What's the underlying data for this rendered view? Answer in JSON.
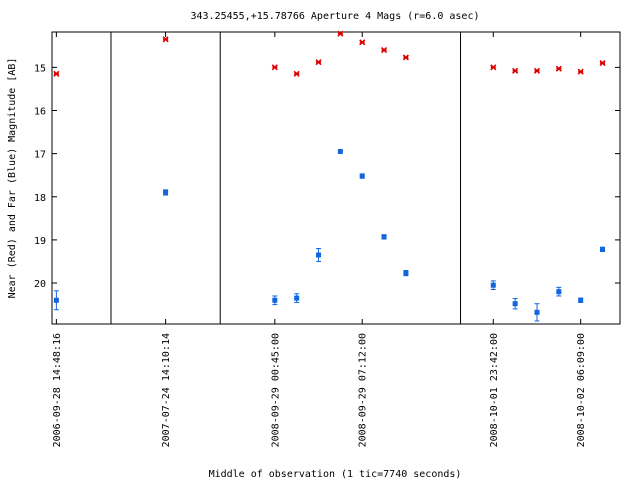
{
  "chart_data": {
    "type": "scatter",
    "title": "343.25455,+15.78766   Aperture 4 Mags (r=6.0 asec)",
    "xlabel": "Middle of observation (1 tic=7740 seconds)",
    "ylabel": "Near (Red) and Far (Blue) Magnitude [AB]",
    "y_reversed": true,
    "ylim": [
      20.95,
      14.18
    ],
    "xlim": [
      -0.2,
      25.8
    ],
    "y_ticks": [
      15,
      16,
      17,
      18,
      19,
      20
    ],
    "x_ticks": [
      {
        "x": 0,
        "label": "2006-09-28 14:48:16"
      },
      {
        "x": 5,
        "label": "2007-07-24 14:10:14"
      },
      {
        "x": 10,
        "label": "2008-09-29 00:45:00"
      },
      {
        "x": 14,
        "label": "2008-09-29 07:12:00"
      },
      {
        "x": 20,
        "label": "2008-10-01 23:42:00"
      },
      {
        "x": 24,
        "label": "2008-10-02 06:09:00"
      }
    ],
    "separators": [
      2.5,
      7.5,
      18.5
    ],
    "grid": false,
    "series": [
      {
        "color": "#dd0000",
        "marker": "x",
        "points": [
          {
            "x": 0,
            "y": 15.15,
            "err": 0.03
          },
          {
            "x": 5,
            "y": 14.35,
            "err": 0.03
          },
          {
            "x": 10,
            "y": 15.0,
            "err": 0.04
          },
          {
            "x": 11,
            "y": 15.15,
            "err": 0.04
          },
          {
            "x": 12,
            "y": 14.88,
            "err": 0.04
          },
          {
            "x": 13,
            "y": 14.22,
            "err": 0.03
          },
          {
            "x": 14,
            "y": 14.42,
            "err": 0.03
          },
          {
            "x": 15,
            "y": 14.6,
            "err": 0.03
          },
          {
            "x": 16,
            "y": 14.77,
            "err": 0.04
          },
          {
            "x": 20,
            "y": 15.0,
            "err": 0.04
          },
          {
            "x": 21,
            "y": 15.08,
            "err": 0.04
          },
          {
            "x": 22,
            "y": 15.08,
            "err": 0.04
          },
          {
            "x": 23,
            "y": 15.03,
            "err": 0.04
          },
          {
            "x": 24,
            "y": 15.1,
            "err": 0.04
          },
          {
            "x": 25,
            "y": 14.9,
            "err": 0.04
          }
        ]
      },
      {
        "color": "#1166dd",
        "marker": "square",
        "points": [
          {
            "x": 0,
            "y": 20.4,
            "err": 0.22
          },
          {
            "x": 5,
            "y": 17.9,
            "err": 0.06
          },
          {
            "x": 10,
            "y": 20.4,
            "err": 0.1
          },
          {
            "x": 11,
            "y": 20.35,
            "err": 0.1
          },
          {
            "x": 12,
            "y": 19.35,
            "err": 0.15
          },
          {
            "x": 13,
            "y": 16.95,
            "err": 0.04
          },
          {
            "x": 14,
            "y": 17.52,
            "err": 0.05
          },
          {
            "x": 15,
            "y": 18.93,
            "err": 0.05
          },
          {
            "x": 16,
            "y": 19.77,
            "err": 0.06
          },
          {
            "x": 20,
            "y": 20.05,
            "err": 0.1
          },
          {
            "x": 21,
            "y": 20.48,
            "err": 0.12
          },
          {
            "x": 22,
            "y": 20.68,
            "err": 0.2
          },
          {
            "x": 23,
            "y": 20.2,
            "err": 0.1
          },
          {
            "x": 24,
            "y": 20.4,
            "err": 0.05
          },
          {
            "x": 25,
            "y": 19.22,
            "err": 0.05
          }
        ]
      }
    ]
  }
}
